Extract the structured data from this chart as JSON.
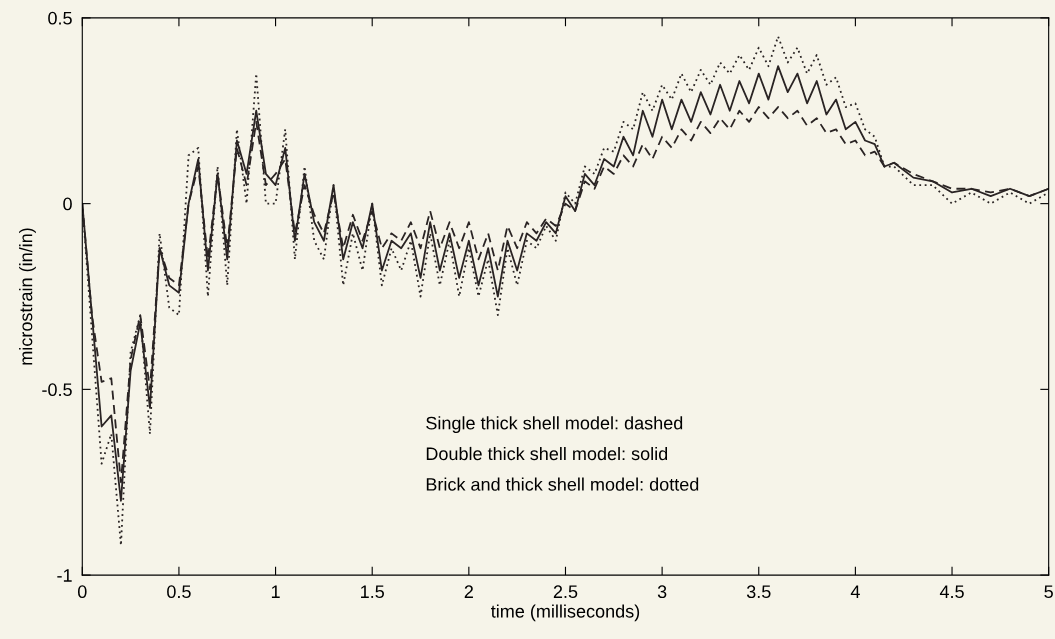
{
  "chart_data": {
    "type": "line",
    "xlabel": "time (milliseconds)",
    "ylabel": "microstrain (in/in)",
    "x": [
      0,
      0.05,
      0.1,
      0.15,
      0.2,
      0.25,
      0.3,
      0.35,
      0.4,
      0.45,
      0.5,
      0.55,
      0.6,
      0.65,
      0.7,
      0.75,
      0.8,
      0.85,
      0.9,
      0.95,
      1.0,
      1.05,
      1.1,
      1.15,
      1.2,
      1.25,
      1.3,
      1.35,
      1.4,
      1.45,
      1.5,
      1.55,
      1.6,
      1.65,
      1.7,
      1.75,
      1.8,
      1.85,
      1.9,
      1.95,
      2.0,
      2.05,
      2.1,
      2.15,
      2.2,
      2.25,
      2.3,
      2.35,
      2.4,
      2.45,
      2.5,
      2.55,
      2.6,
      2.65,
      2.7,
      2.75,
      2.8,
      2.85,
      2.9,
      2.95,
      3.0,
      3.05,
      3.1,
      3.15,
      3.2,
      3.25,
      3.3,
      3.35,
      3.4,
      3.45,
      3.5,
      3.55,
      3.6,
      3.65,
      3.7,
      3.75,
      3.8,
      3.85,
      3.9,
      3.95,
      4.0,
      4.05,
      4.1,
      4.15,
      4.2,
      4.3,
      4.4,
      4.5,
      4.6,
      4.7,
      4.8,
      4.9,
      5.0
    ],
    "series": [
      {
        "color": "#2a2424",
        "line_style": "dashed",
        "values": [
          0,
          -0.3,
          -0.48,
          -0.47,
          -0.75,
          -0.42,
          -0.3,
          -0.5,
          -0.12,
          -0.2,
          -0.22,
          0,
          0.1,
          -0.15,
          0.08,
          -0.12,
          0.15,
          0.05,
          0.22,
          0.05,
          0.08,
          0.12,
          -0.08,
          0.05,
          -0.03,
          -0.08,
          0.03,
          -0.12,
          -0.03,
          -0.1,
          -0.02,
          -0.12,
          -0.08,
          -0.1,
          -0.05,
          -0.12,
          -0.02,
          -0.12,
          -0.05,
          -0.12,
          -0.05,
          -0.15,
          -0.08,
          -0.18,
          -0.06,
          -0.12,
          -0.05,
          -0.08,
          -0.04,
          -0.06,
          0,
          -0.02,
          0.06,
          0.04,
          0.1,
          0.08,
          0.13,
          0.1,
          0.16,
          0.12,
          0.18,
          0.15,
          0.2,
          0.17,
          0.22,
          0.19,
          0.23,
          0.2,
          0.25,
          0.22,
          0.26,
          0.23,
          0.26,
          0.23,
          0.25,
          0.21,
          0.23,
          0.19,
          0.2,
          0.16,
          0.17,
          0.13,
          0.14,
          0.1,
          0.11,
          0.08,
          0.06,
          0.04,
          0.04,
          0.03,
          0.04,
          0.02,
          0.04
        ]
      },
      {
        "color": "#2a2424",
        "line_style": "solid",
        "values": [
          0,
          -0.3,
          -0.6,
          -0.57,
          -0.8,
          -0.45,
          -0.32,
          -0.55,
          -0.12,
          -0.22,
          -0.24,
          0,
          0.12,
          -0.18,
          0.08,
          -0.15,
          0.17,
          0.08,
          0.25,
          0.08,
          0.05,
          0.15,
          -0.1,
          0.08,
          -0.05,
          -0.1,
          0.05,
          -0.15,
          -0.05,
          -0.12,
          0,
          -0.18,
          -0.1,
          -0.12,
          -0.08,
          -0.2,
          -0.05,
          -0.18,
          -0.08,
          -0.2,
          -0.1,
          -0.22,
          -0.12,
          -0.25,
          -0.1,
          -0.18,
          -0.08,
          -0.1,
          -0.05,
          -0.08,
          0.02,
          -0.02,
          0.08,
          0.05,
          0.12,
          0.1,
          0.18,
          0.13,
          0.25,
          0.18,
          0.28,
          0.2,
          0.28,
          0.22,
          0.3,
          0.24,
          0.32,
          0.25,
          0.33,
          0.27,
          0.35,
          0.28,
          0.37,
          0.3,
          0.35,
          0.27,
          0.33,
          0.24,
          0.28,
          0.2,
          0.22,
          0.17,
          0.16,
          0.1,
          0.11,
          0.07,
          0.06,
          0.03,
          0.04,
          0.02,
          0.04,
          0.02,
          0.04
        ]
      },
      {
        "color": "#2a2424",
        "line_style": "dotted",
        "values": [
          0,
          -0.35,
          -0.7,
          -0.62,
          -0.92,
          -0.4,
          -0.3,
          -0.62,
          -0.08,
          -0.28,
          -0.3,
          0.13,
          0.15,
          -0.25,
          0.1,
          -0.22,
          0.2,
          0,
          0.35,
          0,
          0,
          0.2,
          -0.15,
          0.1,
          -0.1,
          -0.15,
          0.05,
          -0.22,
          -0.08,
          -0.18,
          0,
          -0.22,
          -0.12,
          -0.18,
          -0.1,
          -0.25,
          -0.08,
          -0.22,
          -0.1,
          -0.25,
          -0.12,
          -0.25,
          -0.15,
          -0.3,
          -0.12,
          -0.22,
          -0.1,
          -0.12,
          -0.06,
          -0.1,
          0.03,
          0,
          0.1,
          0.08,
          0.15,
          0.14,
          0.22,
          0.2,
          0.3,
          0.25,
          0.32,
          0.28,
          0.35,
          0.3,
          0.36,
          0.32,
          0.38,
          0.35,
          0.4,
          0.36,
          0.42,
          0.37,
          0.45,
          0.38,
          0.42,
          0.35,
          0.4,
          0.32,
          0.34,
          0.26,
          0.27,
          0.2,
          0.18,
          0.1,
          0.1,
          0.05,
          0.05,
          0,
          0.03,
          0,
          0.03,
          0,
          0.03
        ]
      }
    ],
    "xlim": [
      0,
      5
    ],
    "ylim": [
      -1,
      0.5
    ],
    "xticks": [
      0,
      0.5,
      1,
      1.5,
      2,
      2.5,
      3,
      3.5,
      4,
      4.5,
      5
    ],
    "yticks": [
      {
        "value": -1,
        "label": "-1"
      },
      {
        "value": -0.5,
        "label": "-0.5"
      },
      0,
      0.5
    ],
    "grid": false,
    "marker": "none",
    "annotations": [
      "Single thick shell model: dashed",
      "Double thick shell model: solid",
      "Brick and thick shell model: dotted"
    ]
  }
}
